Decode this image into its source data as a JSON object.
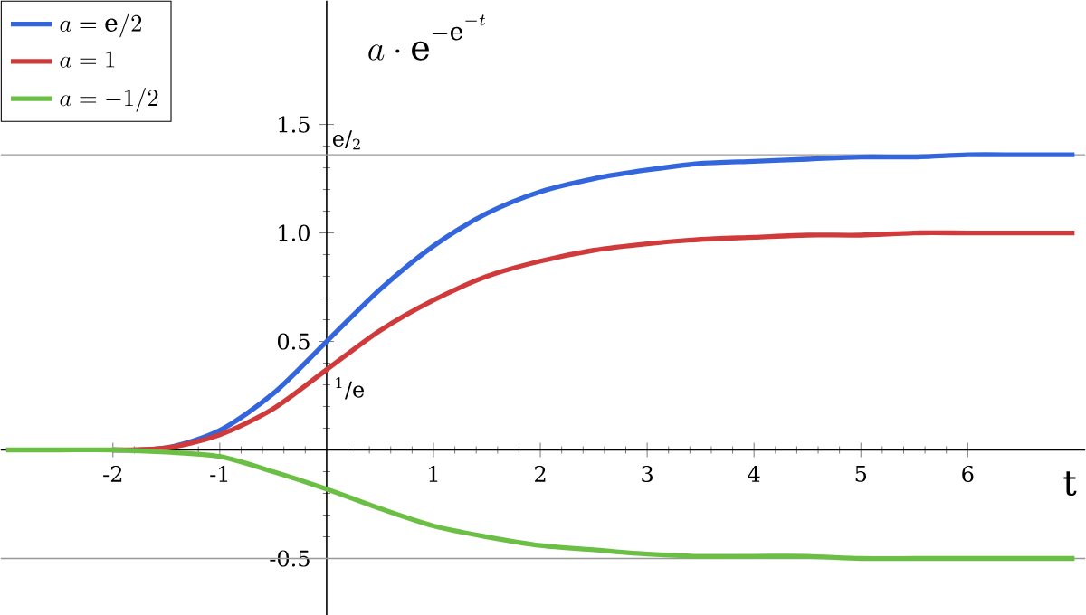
{
  "chart_data": {
    "type": "line",
    "title": "a\\cdot \\mathrm{e}^{-\\mathrm{e}^{-t}}",
    "xlabel": "t",
    "x": [
      -3,
      -2.5,
      -2,
      -1.5,
      -1,
      -0.5,
      0,
      0.5,
      1,
      1.5,
      2,
      2.5,
      3,
      3.5,
      4,
      4.5,
      5,
      5.5,
      6,
      6.5,
      7
    ],
    "series": [
      {
        "name": "a = \\mathrm{e}/2",
        "color": "#3366dd",
        "values": [
          null,
          null,
          0,
          0.01,
          0.09,
          0.26,
          0.5,
          0.74,
          0.94,
          1.09,
          1.19,
          1.25,
          1.29,
          1.32,
          1.33,
          1.34,
          1.35,
          1.35,
          1.36,
          1.36,
          1.36
        ]
      },
      {
        "name": "a = 1",
        "color": "#d03a3a",
        "values": [
          null,
          null,
          0,
          0.01,
          0.07,
          0.19,
          0.37,
          0.55,
          0.69,
          0.8,
          0.87,
          0.92,
          0.95,
          0.97,
          0.98,
          0.99,
          0.99,
          1,
          1,
          1,
          1
        ]
      },
      {
        "name": "a = -1/2",
        "color": "#6cbf45",
        "values": [
          0,
          0,
          0,
          -0.01,
          -0.03,
          -0.1,
          -0.18,
          -0.27,
          -0.35,
          -0.4,
          -0.44,
          -0.46,
          -0.48,
          -0.49,
          -0.49,
          -0.49,
          -0.5,
          -0.5,
          -0.5,
          -0.5,
          -0.5
        ]
      }
    ],
    "xlim": [
      -3.05,
      7.1
    ],
    "ylim": [
      -0.76,
      2.07
    ],
    "xticks": [
      -2,
      -1,
      {
        "value": 0,
        "label": null
      },
      1,
      2,
      3,
      4,
      5,
      6
    ],
    "yticks": [
      -0.5,
      {
        "value": 0,
        "label": null
      },
      0.5,
      {
        "value": 1,
        "label": "1.0"
      },
      1.5
    ],
    "ref_lines": [
      {
        "axis": "y",
        "value": 1.36,
        "label": "e/$_{2}$",
        "color": "#999999"
      },
      {
        "axis": "y",
        "value": -0.5,
        "color": "#999999"
      }
    ],
    "annotations": [
      {
        "text": "$^{1}$/e",
        "x": 0,
        "y": 0.37
      }
    ],
    "legend": "top left",
    "grid": false
  }
}
